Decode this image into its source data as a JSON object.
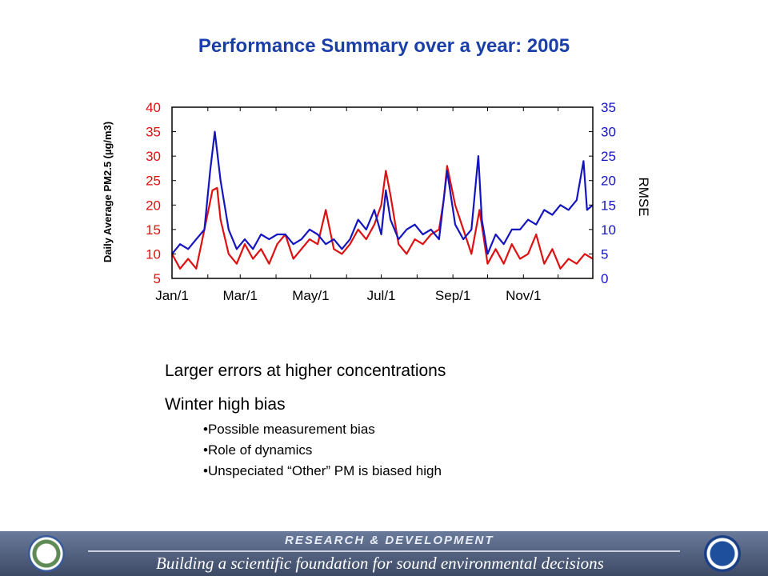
{
  "slide": {
    "title": "Performance Summary over a year: 2005"
  },
  "chart_data": {
    "type": "line",
    "title": "",
    "x_start": "2005-01-01",
    "x_end": "2005-12-31",
    "x_tick_labels": [
      "Jan/1",
      "Mar/1",
      "May/1",
      "Jul/1",
      "Sep/1",
      "Nov/1"
    ],
    "y_left": {
      "label": "Daily Average PM2.5 (µg/m3)",
      "range": [
        5,
        40
      ],
      "ticks": [
        5,
        10,
        15,
        20,
        25,
        30,
        35,
        40
      ],
      "color": "#dd1111"
    },
    "y_right": {
      "label": "RMSE",
      "range": [
        0,
        35
      ],
      "ticks": [
        0,
        5,
        10,
        15,
        20,
        25,
        30,
        35
      ],
      "color": "#1515c0"
    },
    "series": [
      {
        "axis": "left",
        "color": "#dd1111",
        "points": [
          [
            "2005-01-01",
            10
          ],
          [
            "2005-01-08",
            7
          ],
          [
            "2005-01-15",
            9
          ],
          [
            "2005-01-22",
            7
          ],
          [
            "2005-01-29",
            15
          ],
          [
            "2005-02-05",
            23
          ],
          [
            "2005-02-09",
            23.5
          ],
          [
            "2005-02-12",
            17
          ],
          [
            "2005-02-19",
            10
          ],
          [
            "2005-02-26",
            8
          ],
          [
            "2005-03-05",
            12
          ],
          [
            "2005-03-12",
            9
          ],
          [
            "2005-03-19",
            11
          ],
          [
            "2005-03-26",
            8
          ],
          [
            "2005-04-02",
            12
          ],
          [
            "2005-04-09",
            14
          ],
          [
            "2005-04-16",
            9
          ],
          [
            "2005-04-23",
            11
          ],
          [
            "2005-04-30",
            13
          ],
          [
            "2005-05-07",
            12
          ],
          [
            "2005-05-14",
            19
          ],
          [
            "2005-05-21",
            11
          ],
          [
            "2005-05-28",
            10
          ],
          [
            "2005-06-04",
            12
          ],
          [
            "2005-06-11",
            15
          ],
          [
            "2005-06-18",
            13
          ],
          [
            "2005-06-25",
            16
          ],
          [
            "2005-07-01",
            20
          ],
          [
            "2005-07-05",
            27
          ],
          [
            "2005-07-09",
            22
          ],
          [
            "2005-07-16",
            12
          ],
          [
            "2005-07-23",
            10
          ],
          [
            "2005-07-30",
            13
          ],
          [
            "2005-08-06",
            12
          ],
          [
            "2005-08-13",
            14
          ],
          [
            "2005-08-20",
            15
          ],
          [
            "2005-08-24",
            21
          ],
          [
            "2005-08-27",
            28
          ],
          [
            "2005-09-03",
            20
          ],
          [
            "2005-09-10",
            15
          ],
          [
            "2005-09-17",
            10
          ],
          [
            "2005-09-24",
            19
          ],
          [
            "2005-10-01",
            8
          ],
          [
            "2005-10-08",
            11
          ],
          [
            "2005-10-15",
            8
          ],
          [
            "2005-10-22",
            12
          ],
          [
            "2005-10-29",
            9
          ],
          [
            "2005-11-05",
            10
          ],
          [
            "2005-11-12",
            14
          ],
          [
            "2005-11-19",
            8
          ],
          [
            "2005-11-26",
            11
          ],
          [
            "2005-12-03",
            7
          ],
          [
            "2005-12-10",
            9
          ],
          [
            "2005-12-17",
            8
          ],
          [
            "2005-12-24",
            10
          ],
          [
            "2005-12-31",
            9
          ]
        ]
      },
      {
        "axis": "right",
        "color": "#1515c0",
        "points": [
          [
            "2005-01-01",
            5
          ],
          [
            "2005-01-08",
            7
          ],
          [
            "2005-01-15",
            6
          ],
          [
            "2005-01-22",
            8
          ],
          [
            "2005-01-29",
            10
          ],
          [
            "2005-02-03",
            22
          ],
          [
            "2005-02-07",
            30
          ],
          [
            "2005-02-12",
            20
          ],
          [
            "2005-02-19",
            10
          ],
          [
            "2005-02-26",
            6
          ],
          [
            "2005-03-05",
            8
          ],
          [
            "2005-03-12",
            6
          ],
          [
            "2005-03-19",
            9
          ],
          [
            "2005-03-26",
            8
          ],
          [
            "2005-04-02",
            9
          ],
          [
            "2005-04-09",
            9
          ],
          [
            "2005-04-16",
            7
          ],
          [
            "2005-04-23",
            8
          ],
          [
            "2005-04-30",
            10
          ],
          [
            "2005-05-07",
            9
          ],
          [
            "2005-05-14",
            7
          ],
          [
            "2005-05-21",
            8
          ],
          [
            "2005-05-28",
            6
          ],
          [
            "2005-06-04",
            8
          ],
          [
            "2005-06-11",
            12
          ],
          [
            "2005-06-18",
            10
          ],
          [
            "2005-06-25",
            14
          ],
          [
            "2005-07-01",
            9
          ],
          [
            "2005-07-05",
            18
          ],
          [
            "2005-07-09",
            12
          ],
          [
            "2005-07-16",
            8
          ],
          [
            "2005-07-23",
            10
          ],
          [
            "2005-07-30",
            11
          ],
          [
            "2005-08-06",
            9
          ],
          [
            "2005-08-13",
            10
          ],
          [
            "2005-08-20",
            8
          ],
          [
            "2005-08-27",
            22
          ],
          [
            "2005-09-03",
            11
          ],
          [
            "2005-09-10",
            8
          ],
          [
            "2005-09-17",
            10
          ],
          [
            "2005-09-23",
            25
          ],
          [
            "2005-09-26",
            12
          ],
          [
            "2005-10-01",
            5
          ],
          [
            "2005-10-08",
            9
          ],
          [
            "2005-10-15",
            7
          ],
          [
            "2005-10-22",
            10
          ],
          [
            "2005-10-29",
            10
          ],
          [
            "2005-11-05",
            12
          ],
          [
            "2005-11-12",
            11
          ],
          [
            "2005-11-19",
            14
          ],
          [
            "2005-11-26",
            13
          ],
          [
            "2005-12-03",
            15
          ],
          [
            "2005-12-10",
            14
          ],
          [
            "2005-12-17",
            16
          ],
          [
            "2005-12-23",
            24
          ],
          [
            "2005-12-26",
            14
          ],
          [
            "2005-12-31",
            15
          ]
        ]
      }
    ]
  },
  "bullets": {
    "main": [
      "Larger errors at higher concentrations",
      "Winter high bias"
    ],
    "sub": [
      "•Possible measurement bias",
      "•Role of dynamics",
      "•Unspeciated “Other” PM is biased high"
    ]
  },
  "footer": {
    "top": "RESEARCH & DEVELOPMENT",
    "bottom": "Building a scientific foundation for sound environmental decisions",
    "colors": {
      "band": "#4f5d7e",
      "text": "#ffffff"
    },
    "logos": [
      "epa-seal",
      "noaa-logo"
    ]
  }
}
